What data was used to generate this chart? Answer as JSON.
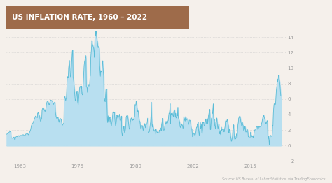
{
  "title": "US INFLATION RATE, 1960 – 2022",
  "title_bg_color": "#9e6b4a",
  "title_text_color": "#ffffff",
  "bg_color": "#f5f0eb",
  "line_color": "#5bbcd6",
  "fill_color": "#b8dff0",
  "source_text": "Source: US Bureau of Labor Statistics, via TradingEconomics",
  "ylim": [
    -2,
    15
  ],
  "yticks": [
    -2,
    0,
    2,
    4,
    6,
    8,
    10,
    12,
    14
  ],
  "xlabel_years": [
    1963,
    1976,
    1989,
    2002,
    2015
  ],
  "monthly_data": [
    1.46,
    1.5,
    1.54,
    1.58,
    1.62,
    1.66,
    1.7,
    1.74,
    1.78,
    1.82,
    1.8,
    1.76,
    1.02,
    0.98,
    0.96,
    0.94,
    1.0,
    1.02,
    1.05,
    1.08,
    1.1,
    0.9,
    0.7,
    0.72,
    1.08,
    1.1,
    1.15,
    1.2,
    1.18,
    1.15,
    1.12,
    1.2,
    1.25,
    1.3,
    1.22,
    1.18,
    1.28,
    1.32,
    1.3,
    1.28,
    1.3,
    1.33,
    1.35,
    1.38,
    1.39,
    1.4,
    1.36,
    1.33,
    1.25,
    1.28,
    1.33,
    1.38,
    1.48,
    1.56,
    1.6,
    1.62,
    1.55,
    1.5,
    1.45,
    1.38,
    1.5,
    1.58,
    1.7,
    1.8,
    1.9,
    2.06,
    2.3,
    2.55,
    2.7,
    2.8,
    2.85,
    2.88,
    3.0,
    3.15,
    3.25,
    3.4,
    3.5,
    3.65,
    3.8,
    3.8,
    3.74,
    3.7,
    3.68,
    3.6,
    4.19,
    4.18,
    4.25,
    4.0,
    3.96,
    3.75,
    3.56,
    3.25,
    3.12,
    3.2,
    3.4,
    3.49,
    4.6,
    4.75,
    4.88,
    4.9,
    4.79,
    4.68,
    4.55,
    4.46,
    4.4,
    4.55,
    4.72,
    5.0,
    5.44,
    5.58,
    5.7,
    5.72,
    5.66,
    5.55,
    5.4,
    5.25,
    5.3,
    5.55,
    5.75,
    5.84,
    5.84,
    5.76,
    5.82,
    5.74,
    5.7,
    5.6,
    5.45,
    5.3,
    5.4,
    5.5,
    5.6,
    5.57,
    4.36,
    4.0,
    3.68,
    3.59,
    3.48,
    3.52,
    3.56,
    3.65,
    3.4,
    3.2,
    3.0,
    3.27,
    3.38,
    3.5,
    3.46,
    3.38,
    3.34,
    3.0,
    2.72,
    2.62,
    2.69,
    2.78,
    2.86,
    2.9,
    6.16,
    6.36,
    6.2,
    6.0,
    5.8,
    6.0,
    6.2,
    7.4,
    8.7,
    8.9,
    8.7,
    8.8,
    10.02,
    10.48,
    10.98,
    10.2,
    9.6,
    8.95,
    8.84,
    9.3,
    10.66,
    11.35,
    12.2,
    12.34,
    8.82,
    8.62,
    8.2,
    7.48,
    6.9,
    6.28,
    5.76,
    5.95,
    6.0,
    6.45,
    6.96,
    7.03,
    5.74,
    5.5,
    5.24,
    6.0,
    6.6,
    7.1,
    7.5,
    7.65,
    7.57,
    7.4,
    7.4,
    7.67,
    6.7,
    6.64,
    6.52,
    7.5,
    8.6,
    9.4,
    10.32,
    10.78,
    10.96,
    11.31,
    11.61,
    11.29,
    7.59,
    7.55,
    7.43,
    6.86,
    7.72,
    7.91,
    7.83,
    7.65,
    7.87,
    7.88,
    8.9,
    9.01,
    11.33,
    12.0,
    12.66,
    13.56,
    13.08,
    13.0,
    12.84,
    12.7,
    12.49,
    12.06,
    11.37,
    13.58,
    14.76,
    14.18,
    14.76,
    14.66,
    13.9,
    13.6,
    13.4,
    12.87,
    12.6,
    12.77,
    12.65,
    12.52,
    10.35,
    9.6,
    8.93,
    9.68,
    9.63,
    9.5,
    9.55,
    10.81,
    10.94,
    10.08,
    9.6,
    8.92,
    6.16,
    6.04,
    5.82,
    5.66,
    6.47,
    7.2,
    7.2,
    7.3,
    5.0,
    3.27,
    2.98,
    3.83,
    3.19,
    3.1,
    3.0,
    3.5,
    3.65,
    3.19,
    2.96,
    2.6,
    2.58,
    2.89,
    3.27,
    3.79,
    4.3,
    4.37,
    4.21,
    4.23,
    4.3,
    3.55,
    3.02,
    2.6,
    2.58,
    3.0,
    3.52,
    3.95,
    3.77,
    3.54,
    3.49,
    3.7,
    3.7,
    3.91,
    4.03,
    3.3,
    3.15,
    3.28,
    3.38,
    3.8,
    1.76,
    1.4,
    1.26,
    1.77,
    1.9,
    2.5,
    2.46,
    1.82,
    1.59,
    1.78,
    2.09,
    2.52,
    3.65,
    3.82,
    3.8,
    3.9,
    3.83,
    3.49,
    3.05,
    2.67,
    2.27,
    2.1,
    2.29,
    2.92,
    3.2,
    3.49,
    3.36,
    3.63,
    3.46,
    3.25,
    3.28,
    3.36,
    3.31,
    3.54,
    3.72,
    3.77,
    5.29,
    5.21,
    5.14,
    5.7,
    5.5,
    5.02,
    4.67,
    4.39,
    4.48,
    4.41,
    3.73,
    3.39,
    3.14,
    3.11,
    2.78,
    2.32,
    2.11,
    2.25,
    2.54,
    2.59,
    2.56,
    2.24,
    1.95,
    2.19,
    2.63,
    2.46,
    2.84,
    2.76,
    2.3,
    2.52,
    2.72,
    2.72,
    2.76,
    3.0,
    3.45,
    3.56,
    1.63,
    1.69,
    1.74,
    1.81,
    2.28,
    2.72,
    2.99,
    3.82,
    5.6,
    3.84,
    2.72,
    2.38,
    2.72,
    2.5,
    2.16,
    1.97,
    1.84,
    1.92,
    2.0,
    1.47,
    2.12,
    2.05,
    1.84,
    1.8,
    1.63,
    1.7,
    1.63,
    1.6,
    1.63,
    1.72,
    1.99,
    1.84,
    2.28,
    2.28,
    2.17,
    1.93,
    2.72,
    2.97,
    3.43,
    3.51,
    2.65,
    1.99,
    1.99,
    2.0,
    2.29,
    2.71,
    2.84,
    2.74,
    3.14,
    2.97,
    2.78,
    2.97,
    2.9,
    3.17,
    3.24,
    3.77,
    4.15,
    4.15,
    4.57,
    5.4,
    2.85,
    3.98,
    4.15,
    3.99,
    4.19,
    4.18,
    4.01,
    3.84,
    3.77,
    4.37,
    4.58,
    4.61,
    4.28,
    3.73,
    4.15,
    3.56,
    3.57,
    3.73,
    3.88,
    3.84,
    4.94,
    3.66,
    3.52,
    3.36,
    3.16,
    3.02,
    2.43,
    2.41,
    2.3,
    2.72,
    2.82,
    2.62,
    2.65,
    2.46,
    2.2,
    2.38,
    3.73,
    3.16,
    3.34,
    3.51,
    3.16,
    3.73,
    3.66,
    3.27,
    3.45,
    3.45,
    3.45,
    3.39,
    2.83,
    2.72,
    2.92,
    3.27,
    3.28,
    3.25,
    3.16,
    2.72,
    2.34,
    2.13,
    2.11,
    1.55,
    1.14,
    1.24,
    1.48,
    1.64,
    1.57,
    1.43,
    1.32,
    1.33,
    1.51,
    1.76,
    2.2,
    2.38,
    2.36,
    2.82,
    2.65,
    3.05,
    2.15,
    1.69,
    1.3,
    1.69,
    2.51,
    2.97,
    2.2,
    2.38,
    2.68,
    1.69,
    1.51,
    2.01,
    3.05,
    2.97,
    2.99,
    2.65,
    2.54,
    2.65,
    2.84,
    3.26,
    3.44,
    3.01,
    2.78,
    2.87,
    3.47,
    2.83,
    3.28,
    3.82,
    4.06,
    4.35,
    4.68,
    4.08,
    2.07,
    2.07,
    2.78,
    3.51,
    3.57,
    4.28,
    4.15,
    4.67,
    5.37,
    3.66,
    3.07,
    3.36,
    2.63,
    2.5,
    2.13,
    2.97,
    3.05,
    3.56,
    3.32,
    2.87,
    2.38,
    2.13,
    2.46,
    2.76,
    1.93,
    1.64,
    1.51,
    1.95,
    1.4,
    2.01,
    2.38,
    1.95,
    2.07,
    2.13,
    2.07,
    2.13,
    2.07,
    1.77,
    1.78,
    2.2,
    2.46,
    3.14,
    3.23,
    3.16,
    3.07,
    3.23,
    3.39,
    3.1,
    2.76,
    2.59,
    1.69,
    1.64,
    2.13,
    2.01,
    1.69,
    1.2,
    0.95,
    0.56,
    0.59,
    0.84,
    1.14,
    1.95,
    2.38,
    2.68,
    1.95,
    1.2,
    0.84,
    1.26,
    0.84,
    0.9,
    1.01,
    1.5,
    1.5,
    1.01,
    2.07,
    2.68,
    2.99,
    3.56,
    3.56,
    3.77,
    3.82,
    3.66,
    3.39,
    2.99,
    2.89,
    2.5,
    2.87,
    2.97,
    2.68,
    2.59,
    1.99,
    1.95,
    2.01,
    2.13,
    2.46,
    2.29,
    1.76,
    1.76,
    1.76,
    2.01,
    2.13,
    1.95,
    1.69,
    1.14,
    1.2,
    1.01,
    1.01,
    1.01,
    1.07,
    1.64,
    1.76,
    1.2,
    1.32,
    1.13,
    1.19,
    1.26,
    1.01,
    1.14,
    1.45,
    1.76,
    2.01,
    2.01,
    2.01,
    2.07,
    2.2,
    2.38,
    2.52,
    2.46,
    2.38,
    2.07,
    2.13,
    2.29,
    2.5,
    2.38,
    2.38,
    2.46,
    2.46,
    2.46,
    2.52,
    2.87,
    2.97,
    3.28,
    3.51,
    3.82,
    3.77,
    3.9,
    3.66,
    3.51,
    3.39,
    3.07,
    3.01,
    2.82,
    2.87,
    3.07,
    3.23,
    3.1,
    1.2,
    0.84,
    1.26,
    0.9,
    0.1,
    0.56,
    1.01,
    1.26,
    1.32,
    1.2,
    1.2,
    1.26,
    1.4,
    2.59,
    2.59,
    4.15,
    4.89,
    5.37,
    5.39,
    5.25,
    5.27,
    5.37,
    6.22,
    7.04,
    7.48,
    7.87,
    8.54,
    8.26,
    8.58,
    9.06,
    9.1,
    8.52,
    8.2,
    7.75,
    7.11,
    6.45
  ]
}
